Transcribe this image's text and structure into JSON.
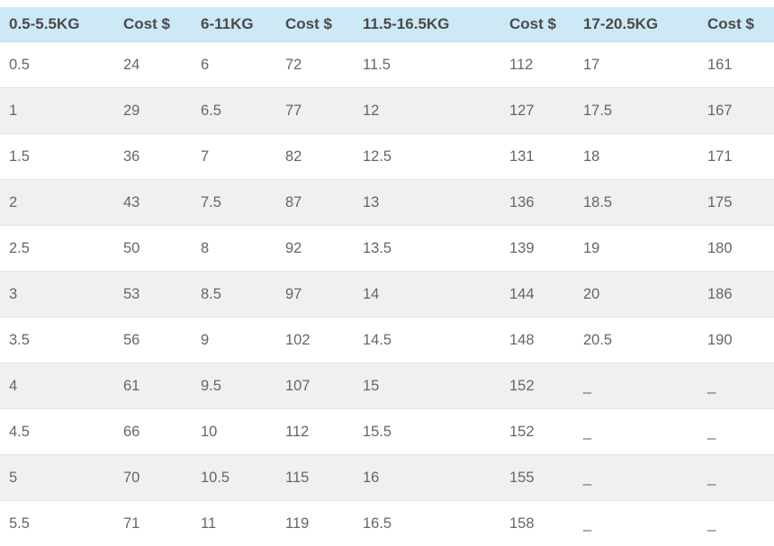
{
  "theme": {
    "header_bg": "#cde9f6",
    "header_text": "#4a4a4a",
    "row_bg": "#ffffff",
    "row_alt_bg": "#f0f0f0",
    "cell_text": "#666666",
    "row_border": "#e1e1e1"
  },
  "chart_data": {
    "type": "table",
    "columns": [
      "0.5-5.5KG",
      "Cost $",
      "6-11KG",
      "Cost $",
      "11.5-16.5KG",
      "Cost $",
      "17-20.5KG",
      "Cost $"
    ],
    "rows": [
      [
        "0.5",
        "24",
        "6",
        "72",
        "11.5",
        "112",
        "17",
        "161"
      ],
      [
        "1",
        "29",
        "6.5",
        "77",
        "12",
        "127",
        "17.5",
        "167"
      ],
      [
        "1.5",
        "36",
        "7",
        "82",
        "12.5",
        "131",
        "18",
        "171"
      ],
      [
        "2",
        "43",
        "7.5",
        "87",
        "13",
        "136",
        "18.5",
        "175"
      ],
      [
        "2.5",
        "50",
        "8",
        "92",
        "13.5",
        "139",
        "19",
        "180"
      ],
      [
        "3",
        "53",
        "8.5",
        "97",
        "14",
        "144",
        "20",
        "186"
      ],
      [
        "3.5",
        "56",
        "9",
        "102",
        "14.5",
        "148",
        "20.5",
        "190"
      ],
      [
        "4",
        "61",
        "9.5",
        "107",
        "15",
        "152",
        "_",
        "_"
      ],
      [
        "4.5",
        "66",
        "10",
        "112",
        "15.5",
        "152",
        "_",
        "_"
      ],
      [
        "5",
        "70",
        "10.5",
        "115",
        "16",
        "155",
        "_",
        "_"
      ],
      [
        "5.5",
        "71",
        "11",
        "119",
        "16.5",
        "158",
        "_",
        "_"
      ]
    ]
  }
}
